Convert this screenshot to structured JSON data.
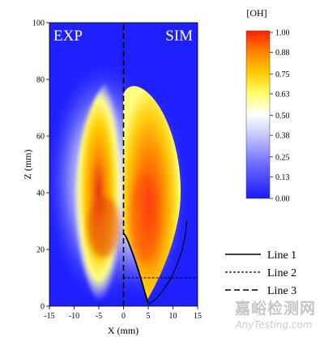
{
  "chart_data": {
    "type": "heatmap",
    "title": "",
    "xlabel": "X (mm)",
    "ylabel": "Z (mm)",
    "xlim": [
      -15,
      15
    ],
    "ylim": [
      0,
      100
    ],
    "x_ticks": [
      "-15",
      "-10",
      "-5",
      "0",
      "5",
      "10",
      "15"
    ],
    "y_ticks": [
      "0",
      "20",
      "40",
      "60",
      "80",
      "100"
    ],
    "panel_left_label": "EXP",
    "panel_right_label": "SIM",
    "colorbar": {
      "title": "[OH]",
      "min": 0.0,
      "max": 1.0,
      "tick_labels": [
        "1.00",
        "0.88",
        "0.75",
        "0.63",
        "0.50",
        "0.38",
        "0.25",
        "0.13",
        "0.00"
      ],
      "colors": [
        "#1a1aff",
        "#6a6aff",
        "#b8b8ff",
        "#ffffff",
        "#ffff70",
        "#ffcc00",
        "#ff8000",
        "#ff2000"
      ]
    },
    "series": [
      {
        "name": "Line 1",
        "style": "solid",
        "x": [
          0,
          0.5,
          1.0,
          1.5,
          2.0,
          2.5,
          3.0,
          3.5,
          4.0,
          4.5,
          5.0
        ],
        "y": [
          25.8,
          24.5,
          22.5,
          20.2,
          17.8,
          15.2,
          12.6,
          9.8,
          6.8,
          3.8,
          1.0
        ]
      },
      {
        "name": "Line 2",
        "style": "dashed",
        "x": [
          0,
          15
        ],
        "y": [
          10,
          10
        ]
      },
      {
        "name": "Line 3",
        "style": "long-dashed",
        "x": [
          0,
          0
        ],
        "y": [
          0,
          100
        ]
      }
    ],
    "annotations": [
      {
        "style": "solid-thin",
        "x": [
          5.0,
          6.5,
          8.0,
          9.5,
          10.8,
          11.8,
          12.5,
          12.8
        ],
        "y": [
          0.5,
          2.5,
          5.5,
          9.5,
          14.5,
          19.5,
          25.0,
          30.0
        ]
      }
    ]
  },
  "watermark": {
    "cn": "嘉峪检测网",
    "en": "AnyTesting.com"
  }
}
